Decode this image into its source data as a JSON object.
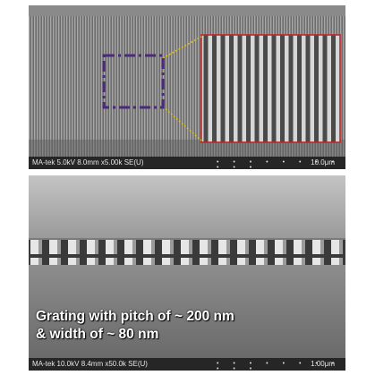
{
  "top_panel": {
    "metadata": "MA-tek 5.0kV 8.0mm x5.00k SE(U)",
    "scale_label": "10.0μm",
    "colors": {
      "region_box": "#4b2a7a",
      "zoom_lines": "#e0c020",
      "inset_border": "#c0262a"
    }
  },
  "bottom_panel": {
    "metadata": "MA-tek 10.0kV 8.4mm x50.0k SE(U)",
    "scale_label": "1.00μm",
    "caption_line1": "Grating with pitch of ~ 200 nm",
    "caption_line2": "& width of ~ 80 nm"
  },
  "scale_ticks": "• • • • • • • • • • •"
}
